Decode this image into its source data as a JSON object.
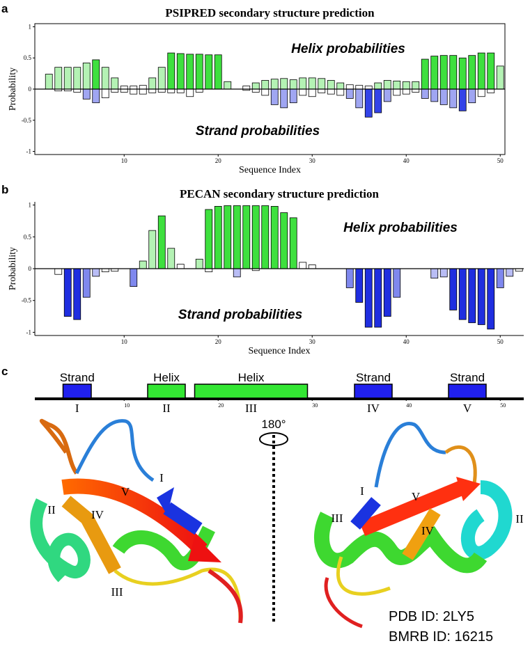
{
  "panel_labels": [
    "a",
    "b",
    "c"
  ],
  "chart_data": [
    {
      "type": "bar",
      "title": "PSIPRED secondary structure prediction",
      "xlabel": "Sequence Index",
      "ylabel": "Probability",
      "x": [
        2,
        3,
        4,
        5,
        6,
        7,
        8,
        9,
        10,
        11,
        12,
        13,
        14,
        15,
        16,
        17,
        18,
        19,
        20,
        21,
        22,
        23,
        24,
        25,
        26,
        27,
        28,
        29,
        30,
        31,
        32,
        33,
        34,
        35,
        36,
        37,
        38,
        39,
        40,
        41,
        42,
        43,
        44,
        45,
        46,
        47,
        48,
        49,
        50
      ],
      "xlim": [
        0.5,
        50.5
      ],
      "xticks": [
        10,
        20,
        30,
        40,
        50
      ],
      "ylim": [
        -1.05,
        1.05
      ],
      "yticks": [
        1,
        0.5,
        0,
        -0.5,
        -1
      ],
      "frame": true,
      "series": [
        {
          "name": "Helix probabilities",
          "values": [
            0.24,
            0.35,
            0.35,
            0.35,
            0.42,
            0.47,
            0.35,
            0.18,
            0.05,
            0.05,
            0.06,
            0.18,
            0.35,
            0.58,
            0.57,
            0.56,
            0.56,
            0.55,
            0.55,
            0.12,
            null,
            0.05,
            0.1,
            0.14,
            0.16,
            0.17,
            0.15,
            0.18,
            0.18,
            0.17,
            0.14,
            0.1,
            0.07,
            0.06,
            0.05,
            0.1,
            0.14,
            0.13,
            0.12,
            0.12,
            0.48,
            0.53,
            0.54,
            0.54,
            0.5,
            0.54,
            0.58,
            0.58,
            0.37
          ],
          "colors": [
            "#b4f2b4",
            "#b4f2b4",
            "#b4f2b4",
            "#b4f2b4",
            "#b4f2b4",
            "#3ee03e",
            "#b4f2b4",
            "#b4f2b4",
            "#ffffff",
            "#ffffff",
            "#ffffff",
            "#b4f2b4",
            "#b4f2b4",
            "#3ee03e",
            "#3ee03e",
            "#3ee03e",
            "#3ee03e",
            "#3ee03e",
            "#3ee03e",
            "#b4f2b4",
            null,
            "#ffffff",
            "#b4f2b4",
            "#b4f2b4",
            "#b4f2b4",
            "#b4f2b4",
            "#b4f2b4",
            "#b4f2b4",
            "#b4f2b4",
            "#b4f2b4",
            "#b4f2b4",
            "#b4f2b4",
            "#ffffff",
            "#ffffff",
            "#ffffff",
            "#b4f2b4",
            "#b4f2b4",
            "#b4f2b4",
            "#b4f2b4",
            "#b4f2b4",
            "#3ee03e",
            "#3ee03e",
            "#3ee03e",
            "#3ee03e",
            "#3ee03e",
            "#3ee03e",
            "#3ee03e",
            "#3ee03e",
            "#b4f2b4"
          ]
        },
        {
          "name": "Strand probabilities",
          "values": [
            0,
            -0.03,
            -0.03,
            -0.05,
            -0.16,
            -0.22,
            -0.14,
            -0.05,
            -0.05,
            -0.08,
            -0.08,
            -0.06,
            -0.05,
            -0.06,
            -0.06,
            -0.12,
            -0.05,
            0,
            0,
            0,
            null,
            -0.02,
            -0.05,
            -0.1,
            -0.25,
            -0.3,
            -0.22,
            -0.1,
            -0.12,
            -0.06,
            -0.08,
            -0.1,
            -0.15,
            -0.3,
            -0.45,
            -0.38,
            -0.2,
            -0.1,
            -0.08,
            -0.05,
            -0.15,
            -0.2,
            -0.25,
            -0.3,
            -0.35,
            -0.22,
            -0.12,
            -0.06,
            0
          ],
          "colors": [
            "#ffffff",
            "#ffffff",
            "#ffffff",
            "#ffffff",
            "#a0a6f2",
            "#a0a6f2",
            "#ffffff",
            "#ffffff",
            "#ffffff",
            "#ffffff",
            "#ffffff",
            "#ffffff",
            "#ffffff",
            "#ffffff",
            "#ffffff",
            "#ffffff",
            "#ffffff",
            "#ffffff",
            "#ffffff",
            "#ffffff",
            null,
            "#ffffff",
            "#ffffff",
            "#ffffff",
            "#a0a6f2",
            "#a0a6f2",
            "#a0a6f2",
            "#ffffff",
            "#ffffff",
            "#ffffff",
            "#ffffff",
            "#ffffff",
            "#a0a6f2",
            "#a0a6f2",
            "#3343e8",
            "#3343e8",
            "#a0a6f2",
            "#ffffff",
            "#ffffff",
            "#ffffff",
            "#a0a6f2",
            "#a0a6f2",
            "#a0a6f2",
            "#a0a6f2",
            "#3343e8",
            "#a0a6f2",
            "#ffffff",
            "#ffffff",
            "#ffffff"
          ]
        }
      ]
    },
    {
      "type": "bar",
      "title": "PECAN secondary structure prediction",
      "xlabel": "Sequence Index",
      "ylabel": "Probability",
      "x": [
        2,
        3,
        4,
        5,
        6,
        7,
        8,
        9,
        10,
        11,
        12,
        13,
        14,
        15,
        16,
        17,
        18,
        19,
        20,
        21,
        22,
        23,
        24,
        25,
        26,
        27,
        28,
        29,
        30,
        31,
        32,
        33,
        34,
        35,
        36,
        37,
        38,
        39,
        40,
        41,
        42,
        43,
        44,
        45,
        46,
        47,
        48,
        49,
        50,
        51,
        52
      ],
      "xlim": [
        0.5,
        52.5
      ],
      "xticks": [
        10,
        20,
        30,
        40,
        50
      ],
      "ylim": [
        -1.05,
        1.05
      ],
      "yticks": [
        1,
        0.5,
        0,
        -0.5,
        -1
      ],
      "frame": false,
      "series": [
        {
          "name": "Helix probabilities",
          "values": [
            0,
            0,
            0,
            0,
            0,
            0,
            0,
            0,
            0,
            0,
            0.12,
            0.6,
            0.83,
            0.32,
            0.07,
            0,
            0.15,
            0.93,
            0.98,
            0.99,
            0.99,
            0.99,
            0.99,
            0.99,
            0.98,
            0.88,
            0.8,
            0.1,
            0.06,
            0,
            0,
            0,
            0,
            0,
            0,
            0,
            0,
            0,
            0,
            0,
            0,
            0,
            0,
            0,
            0,
            0,
            0,
            0,
            0,
            0,
            0
          ],
          "colors": [
            "#ffffff",
            "#ffffff",
            "#ffffff",
            "#ffffff",
            "#ffffff",
            "#ffffff",
            "#ffffff",
            "#ffffff",
            "#ffffff",
            "#ffffff",
            "#b4f2b4",
            "#b4f2b4",
            "#3ee03e",
            "#b4f2b4",
            "#ffffff",
            "#ffffff",
            "#b4f2b4",
            "#3ee03e",
            "#3ee03e",
            "#3ee03e",
            "#3ee03e",
            "#3ee03e",
            "#3ee03e",
            "#3ee03e",
            "#3ee03e",
            "#3ee03e",
            "#3ee03e",
            "#ffffff",
            "#ffffff",
            "#ffffff",
            "#ffffff",
            "#ffffff",
            "#ffffff",
            "#ffffff",
            "#ffffff",
            "#ffffff",
            "#ffffff",
            "#ffffff",
            "#ffffff",
            "#ffffff",
            "#ffffff",
            "#ffffff",
            "#ffffff",
            "#ffffff",
            "#ffffff",
            "#ffffff",
            "#ffffff",
            "#ffffff",
            "#ffffff",
            "#ffffff",
            "#ffffff"
          ]
        },
        {
          "name": "Strand probabilities",
          "values": [
            0,
            -0.09,
            -0.75,
            -0.8,
            -0.45,
            -0.12,
            -0.05,
            -0.04,
            0,
            -0.28,
            0,
            0,
            0,
            0,
            0,
            0,
            0,
            -0.05,
            0,
            0,
            -0.13,
            0,
            -0.03,
            0,
            0,
            0,
            0,
            0,
            0,
            0,
            0,
            0,
            -0.3,
            -0.53,
            -0.92,
            -0.92,
            -0.75,
            -0.45,
            0,
            0,
            0,
            -0.15,
            -0.13,
            -0.65,
            -0.8,
            -0.85,
            -0.88,
            -0.95,
            -0.3,
            -0.12,
            -0.04
          ],
          "colors": [
            "#ffffff",
            "#ffffff",
            "#1f2ee0",
            "#1f2ee0",
            "#7f88ee",
            "#b9bdf5",
            "#ffffff",
            "#ffffff",
            "#ffffff",
            "#7f88ee",
            "#ffffff",
            "#ffffff",
            "#ffffff",
            "#ffffff",
            "#ffffff",
            "#ffffff",
            "#ffffff",
            "#ffffff",
            "#ffffff",
            "#ffffff",
            "#b9bdf5",
            "#ffffff",
            "#ffffff",
            "#ffffff",
            "#ffffff",
            "#ffffff",
            "#ffffff",
            "#ffffff",
            "#ffffff",
            "#ffffff",
            "#ffffff",
            "#ffffff",
            "#7f88ee",
            "#1f2ee0",
            "#1f2ee0",
            "#1f2ee0",
            "#1f2ee0",
            "#7f88ee",
            "#ffffff",
            "#ffffff",
            "#ffffff",
            "#b9bdf5",
            "#b9bdf5",
            "#1f2ee0",
            "#1f2ee0",
            "#1f2ee0",
            "#1f2ee0",
            "#1f2ee0",
            "#7f88ee",
            "#b9bdf5",
            "#ffffff"
          ]
        }
      ]
    }
  ],
  "topology": {
    "xlim": [
      0.5,
      52.5
    ],
    "xticks": [
      10,
      20,
      30,
      40,
      50
    ],
    "elements": [
      {
        "label": "Strand",
        "numeral": "I",
        "start": 3.5,
        "end": 6.5,
        "color": "#2020ee"
      },
      {
        "label": "Helix",
        "numeral": "II",
        "start": 12.5,
        "end": 16.5,
        "color": "#33e633"
      },
      {
        "label": "Helix",
        "numeral": "III",
        "start": 17.5,
        "end": 29.5,
        "color": "#33e633"
      },
      {
        "label": "Strand",
        "numeral": "IV",
        "start": 34.5,
        "end": 38.5,
        "color": "#2020ee"
      },
      {
        "label": "Strand",
        "numeral": "V",
        "start": 44.5,
        "end": 48.5,
        "color": "#2020ee"
      }
    ]
  },
  "structure": {
    "rotation": "180°",
    "left_labels": [
      "I",
      "V",
      "II",
      "IV",
      "III"
    ],
    "right_labels": [
      "I",
      "V",
      "II",
      "III",
      "IV"
    ],
    "ids": [
      "PDB ID: 2LY5",
      "BMRB ID: 16215"
    ]
  }
}
